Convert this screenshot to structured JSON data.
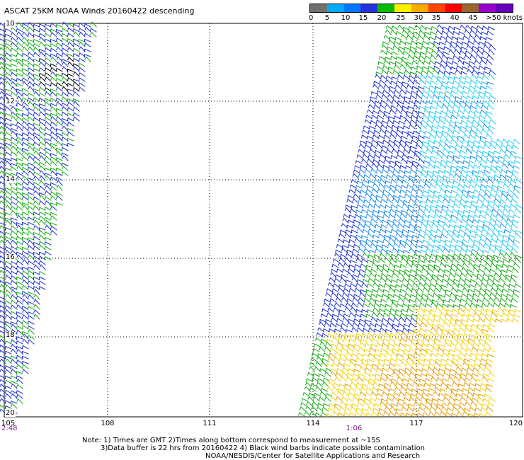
{
  "title": "ASCAT 25KM NOAA Winds 20160422 descending",
  "wind_scale": {
    "labels": [
      "0",
      "5",
      "10",
      "15",
      "20",
      "25",
      "30",
      "35",
      "40",
      "45",
      ">50 knots"
    ],
    "colors": [
      "#707070",
      "#00aaff",
      "#0077ff",
      "#2233dd",
      "#00bb00",
      "#ffee00",
      "#ffaa00",
      "#ff4400",
      "#ff0000",
      "#996633",
      "#9900cc",
      "#6600bb"
    ]
  },
  "map": {
    "lon_ticks": [
      "105",
      "108",
      "111",
      "114",
      "117",
      "120"
    ],
    "lat_ticks": [
      "10",
      "12",
      "14",
      "16",
      "18",
      "20"
    ],
    "grid": "dotted",
    "lon_range": [
      105,
      120
    ],
    "lat_range": [
      10,
      20
    ]
  },
  "pass_times": [
    "2:48",
    "1:06"
  ],
  "notes": {
    "line1": "Note: 1) Times are GMT 2)Times along bottom correspond to measurement at ~15S",
    "line2": "3)Data buffer is 22 hrs from 20160422 4) Black wind barbs indicate possible contamination",
    "line3": "NOAA/NESDIS/Center for Satellite Applications and Research"
  }
}
